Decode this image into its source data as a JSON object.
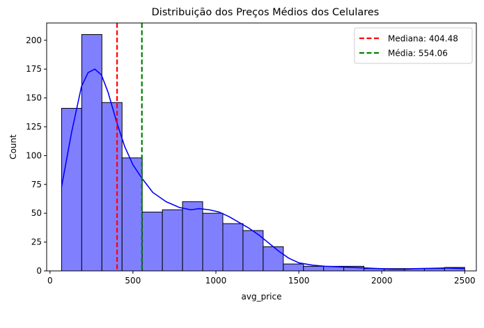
{
  "chart_data": {
    "type": "histogram",
    "title": "Distribuição dos Preços Médios dos Celulares",
    "xlabel": "avg_price",
    "ylabel": "Count",
    "xlim": [
      -20,
      2570
    ],
    "ylim": [
      0,
      215
    ],
    "xticks": [
      0,
      500,
      1000,
      1500,
      2000,
      2500
    ],
    "yticks": [
      0,
      25,
      50,
      75,
      100,
      125,
      150,
      175,
      200
    ],
    "bins": {
      "edges": [
        70,
        191.5,
        313,
        434.5,
        556,
        677.5,
        799,
        920.5,
        1042,
        1163.5,
        1285,
        1406.5,
        1528,
        1649.5,
        1771,
        1892.5,
        2014,
        2135.5,
        2257,
        2378.5,
        2500
      ],
      "counts": [
        141,
        205,
        146,
        98,
        51,
        53,
        60,
        50,
        41,
        35,
        21,
        6,
        4,
        4,
        4,
        2,
        2,
        2,
        2,
        3
      ]
    },
    "bar_color": "#8080ff",
    "bar_edge_color": "#000000",
    "kde": {
      "name": "kde",
      "color": "#0000ff",
      "x": [
        70,
        130,
        190,
        230,
        270,
        310,
        350,
        400,
        450,
        500,
        556,
        620,
        700,
        780,
        850,
        900,
        960,
        1020,
        1080,
        1140,
        1200,
        1260,
        1320,
        1380,
        1440,
        1500,
        1580,
        1660,
        1740,
        1820,
        1900,
        1980,
        2060,
        2140,
        2220,
        2300,
        2380,
        2450,
        2500
      ],
      "y": [
        73,
        120,
        160,
        172,
        175,
        170,
        155,
        130,
        108,
        92,
        80,
        68,
        60,
        55,
        53,
        54,
        53,
        51,
        47,
        42,
        37,
        31,
        24,
        17,
        11,
        7,
        5,
        4,
        3.5,
        3,
        2.5,
        2,
        1.5,
        1.5,
        2,
        2.2,
        2.5,
        2.2,
        2
      ]
    },
    "vlines": [
      {
        "label": "Mediana: 404.48",
        "x": 404.48,
        "color": "#ff0000"
      },
      {
        "label": "Média: 554.06",
        "x": 554.06,
        "color": "#008000"
      }
    ],
    "legend_position": "top-right"
  }
}
